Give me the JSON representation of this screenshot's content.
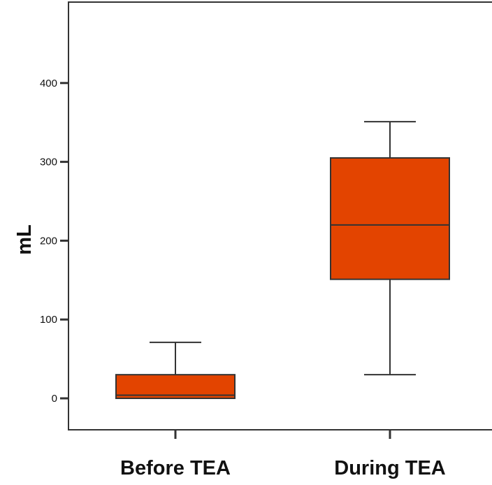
{
  "chart_data": {
    "type": "box",
    "ylabel": "mL",
    "xlabel": "",
    "ylim": [
      -40,
      505
    ],
    "yticks": [
      0,
      100,
      200,
      300,
      400
    ],
    "categories": [
      "Before TEA",
      "During TEA"
    ],
    "boxes": [
      {
        "category": "Before TEA",
        "min": 0,
        "q1": 0,
        "median": 4,
        "q3": 30,
        "max": 71
      },
      {
        "category": "During TEA",
        "min": 30,
        "q1": 151,
        "median": 220,
        "q3": 305,
        "max": 351
      }
    ],
    "colors": {
      "box_fill": "#e34400",
      "box_stroke": "#333333",
      "axis": "#333333"
    },
    "grid": false,
    "legend": "none"
  }
}
